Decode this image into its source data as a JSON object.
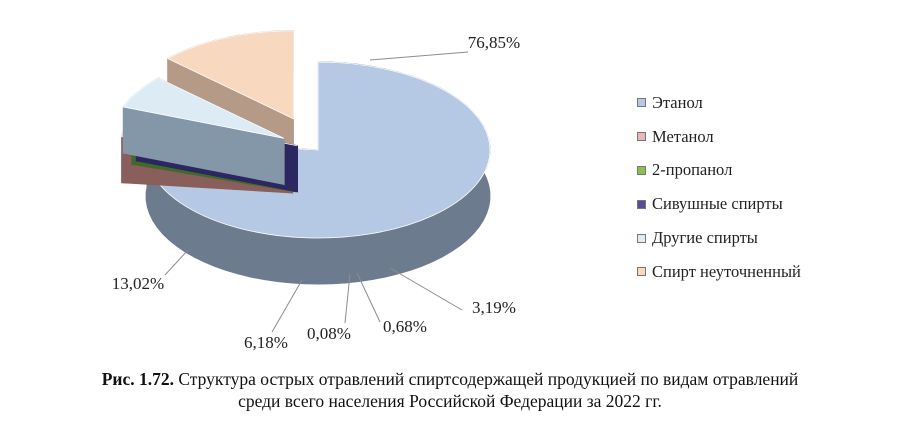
{
  "chart_data": {
    "type": "pie",
    "style": "3d-exploded",
    "categories": [
      "Этанол",
      "Метанол",
      "2-пропанол",
      "Сивушные спирты",
      "Другие спирты",
      "Спирт неуточненный"
    ],
    "values": [
      76.85,
      3.19,
      0.68,
      0.08,
      6.18,
      13.02
    ],
    "value_labels": [
      "76,85%",
      "3,19%",
      "0,68%",
      "0,08%",
      "6,18%",
      "13,02%"
    ],
    "colors": [
      "#b6c9e4",
      "#e6b8b7",
      "#8cbf4e",
      "#5b4a9e",
      "#ddebf5",
      "#f8d8be"
    ],
    "side_colors": [
      "#6d7b8f",
      "#8a5e5b",
      "#3f6a2a",
      "#2c2760",
      "#8497a8",
      "#b69a88"
    ],
    "legend_position": "right"
  },
  "caption": {
    "label": "Рис. 1.72.",
    "line1": "Структура острых отравлений спиртсодержащей продукцией по видам отравлений",
    "line2": "среди всего населения Российской Федерации за 2022 гг."
  }
}
